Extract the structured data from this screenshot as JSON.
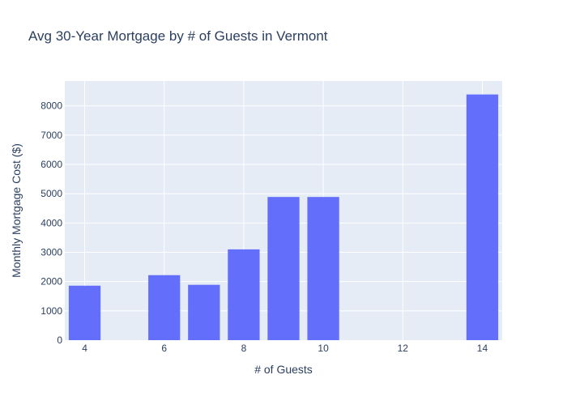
{
  "chart_data": {
    "type": "bar",
    "title": "Avg 30-Year Mortgage by # of Guests in Vermont",
    "xlabel": "# of Guests",
    "ylabel": "Monthly Mortgage Cost ($)",
    "x": [
      4,
      6,
      7,
      8,
      9,
      10,
      14
    ],
    "values": [
      1860,
      2220,
      1890,
      3100,
      4890,
      4890,
      8390
    ],
    "xlim": [
      3.5,
      14.5
    ],
    "ylim": [
      0,
      8850
    ],
    "x_ticks": [
      4,
      6,
      8,
      10,
      12,
      14
    ],
    "y_ticks": [
      0,
      1000,
      2000,
      3000,
      4000,
      5000,
      6000,
      7000,
      8000
    ],
    "grid": true,
    "bar_color": "#636efa",
    "plot_background": "#e5ecf6"
  }
}
